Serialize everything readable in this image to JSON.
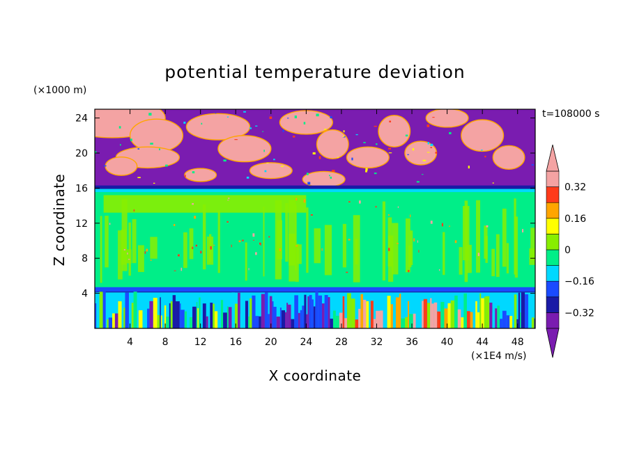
{
  "chart_data": {
    "type": "heatmap",
    "title": "potential temperature deviation",
    "xlabel": "X coordinate",
    "ylabel": "Z coordinate",
    "x_units": "(×1E4 m/s)",
    "y_units": "(×1000 m)",
    "time_label": "t=108000 s",
    "xlim": [
      0,
      50
    ],
    "ylim": [
      0,
      25
    ],
    "x_ticks": [
      4,
      8,
      12,
      16,
      20,
      24,
      28,
      32,
      36,
      40,
      44,
      48
    ],
    "y_ticks": [
      4,
      8,
      12,
      16,
      20,
      24
    ],
    "colorbar": {
      "levels": [
        -0.4,
        -0.32,
        -0.24,
        -0.16,
        -0.08,
        0,
        0.08,
        0.16,
        0.24,
        0.32,
        0.4
      ],
      "labels": [
        "0.32",
        "0.16",
        "0",
        "−0.16",
        "−0.32"
      ],
      "label_values": [
        0.32,
        0.16,
        0,
        -0.16,
        -0.32
      ],
      "colors": [
        "#7a1cb0",
        "#1a1aa6",
        "#1a4bff",
        "#00d8ff",
        "#00ee88",
        "#88ee00",
        "#ffff00",
        "#ffa500",
        "#ff3b1a",
        "#f4a3a3"
      ]
    },
    "grid": false,
    "regions": [
      {
        "z_range": [
          16.2,
          25
        ],
        "pattern": "alternating purple and pink patches"
      },
      {
        "z_range": [
          4.5,
          16.2
        ],
        "pattern": "mostly green with light-green vertical streaks"
      },
      {
        "z_range": [
          0,
          4.5
        ],
        "pattern": "turbulent multicolor layer"
      }
    ]
  }
}
